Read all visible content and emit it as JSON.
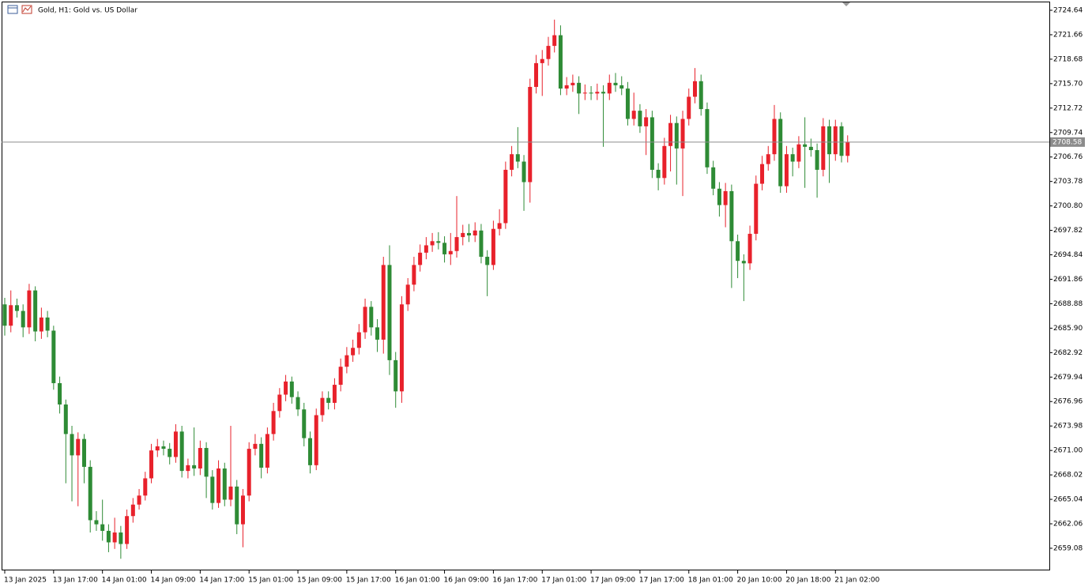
{
  "chart_data": {
    "type": "candlestick",
    "title": "Gold, H1:  Gold vs. US Dollar",
    "up_color": "#e8212b",
    "down_color": "#2e8b35",
    "last_price": 2708.58,
    "ylim": [
      2656.38,
      2725.7
    ],
    "yticks": [
      2659.08,
      2662.06,
      2665.04,
      {
        "value": 2668.02,
        "label": "2668.02"
      },
      {
        "value": 2671.0,
        "label": "2671.00"
      },
      2673.98,
      2676.96,
      2679.94,
      2682.92,
      {
        "value": 2685.9,
        "label": "2685.90"
      },
      2688.88,
      2691.86,
      2694.84,
      2697.82,
      {
        "value": 2700.8,
        "label": "2700.80"
      },
      2703.78,
      2706.76,
      2709.74,
      2712.72,
      {
        "value": 2715.7,
        "label": "2715.70"
      },
      2718.68,
      2721.66,
      2724.64
    ],
    "categories": [
      "13 Jan 2025",
      null,
      null,
      null,
      null,
      null,
      null,
      null,
      "13 Jan 17:00",
      null,
      null,
      null,
      null,
      null,
      null,
      null,
      "14 Jan 01:00",
      null,
      null,
      null,
      null,
      null,
      null,
      null,
      "14 Jan 09:00",
      null,
      null,
      null,
      null,
      null,
      null,
      null,
      "14 Jan 17:00",
      null,
      null,
      null,
      null,
      null,
      null,
      null,
      "15 Jan 01:00",
      null,
      null,
      null,
      null,
      null,
      null,
      null,
      "15 Jan 09:00",
      null,
      null,
      null,
      null,
      null,
      null,
      null,
      "15 Jan 17:00",
      null,
      null,
      null,
      null,
      null,
      null,
      null,
      "16 Jan 01:00",
      null,
      null,
      null,
      null,
      null,
      null,
      null,
      "16 Jan 09:00",
      null,
      null,
      null,
      null,
      null,
      null,
      null,
      "16 Jan 17:00",
      null,
      null,
      null,
      null,
      null,
      null,
      null,
      "17 Jan 01:00",
      null,
      null,
      null,
      null,
      null,
      null,
      null,
      "17 Jan 09:00",
      null,
      null,
      null,
      null,
      null,
      null,
      null,
      "17 Jan 17:00",
      null,
      null,
      null,
      null,
      null,
      null,
      null,
      "18 Jan 01:00",
      null,
      null,
      null,
      null,
      null,
      null,
      null,
      "20 Jan 10:00",
      null,
      null,
      null,
      null,
      null,
      null,
      null,
      "20 Jan 18:00",
      null,
      null,
      null,
      null,
      null,
      null,
      null,
      "21 Jan 02:00",
      null,
      null
    ],
    "open": [
      2688.8,
      2686.2,
      2688.7,
      2688.0,
      2686.0,
      2690.5,
      2685.5,
      2687.2,
      2685.6,
      2679.2,
      2676.6,
      2673.0,
      2670.4,
      2672.4,
      2669.0,
      2662.5,
      2662.0,
      2661.2,
      2659.8,
      2661.0,
      2659.6,
      2663.0,
      2664.4,
      2665.5,
      2667.6,
      2671.0,
      2671.5,
      2671.2,
      2670.2,
      2673.3,
      2668.5,
      2669.2,
      2668.8,
      2671.3,
      2667.8,
      2664.6,
      2668.8,
      2665.0,
      2666.6,
      2662.0,
      2665.5,
      2671.2,
      2671.8,
      2668.9,
      2673.0,
      2675.8,
      2677.8,
      2679.4,
      2677.5,
      2676.0,
      2672.5,
      2669.2,
      2675.3,
      2677.4,
      2676.8,
      2679.0,
      2681.2,
      2682.6,
      2683.5,
      2685.4,
      2688.5,
      2686.0,
      2684.5,
      2693.6,
      2682.0,
      2678.2,
      2688.8,
      2691.2,
      2693.6,
      2695.1,
      2696.0,
      2696.5,
      2696.3,
      2694.9,
      2695.3,
      2697.0,
      2697.5,
      2697.2,
      2697.8,
      2694.6,
      2693.6,
      2698.0,
      2698.7,
      2705.2,
      2707.1,
      2706.2,
      2703.7,
      2715.3,
      2718.2,
      2718.7,
      2720.3,
      2721.6,
      2715.1,
      2715.5,
      2715.8,
      2714.5,
      2714.6,
      2714.5,
      2714.7,
      2714.5,
      2715.8,
      2715.5,
      2715.1,
      2711.4,
      2712.4,
      2710.5,
      2711.6,
      2705.2,
      2704.2,
      2708.1,
      2710.9,
      2707.8,
      2711.4,
      2714.1,
      2716.0,
      2712.6,
      2705.5,
      2702.9,
      2700.9,
      2702.6,
      2696.5,
      2694.1,
      2693.8,
      2697.4,
      2703.5,
      2705.9,
      2707.1,
      2711.4,
      2703.2,
      2707.1,
      2706.2,
      2708.3,
      2708.0,
      2707.6,
      2705.2,
      2710.5,
      2707.1,
      2710.5,
      2706.9
    ],
    "high": [
      2689.6,
      2690.5,
      2689.5,
      2688.8,
      2691.3,
      2691.0,
      2688.4,
      2688.0,
      2686.2,
      2680.0,
      2677.2,
      2674.0,
      2673.2,
      2673.0,
      2669.8,
      2663.6,
      2665.0,
      2662.0,
      2662.8,
      2661.8,
      2663.8,
      2665.2,
      2666.3,
      2668.4,
      2671.8,
      2672.4,
      2672.2,
      2671.9,
      2674.2,
      2674.0,
      2670.0,
      2673.8,
      2672.2,
      2672.0,
      2668.6,
      2669.8,
      2669.5,
      2674.0,
      2667.4,
      2666.3,
      2672.0,
      2673.0,
      2672.6,
      2673.8,
      2676.8,
      2678.6,
      2680.2,
      2680.0,
      2678.2,
      2676.8,
      2673.3,
      2676.1,
      2678.2,
      2678.2,
      2679.8,
      2682.2,
      2683.6,
      2684.5,
      2686.4,
      2689.5,
      2689.2,
      2687.0,
      2694.6,
      2696.0,
      2683.0,
      2689.8,
      2692.0,
      2694.6,
      2696.1,
      2697.0,
      2697.5,
      2697.6,
      2697.1,
      2697.5,
      2702.0,
      2698.5,
      2698.6,
      2698.8,
      2698.6,
      2695.4,
      2699.0,
      2700.4,
      2706.2,
      2708.1,
      2710.4,
      2707.0,
      2716.3,
      2719.2,
      2719.8,
      2721.4,
      2723.5,
      2722.8,
      2716.5,
      2716.8,
      2716.6,
      2715.6,
      2715.4,
      2715.7,
      2715.5,
      2716.8,
      2717.0,
      2716.6,
      2715.9,
      2714.6,
      2713.2,
      2712.6,
      2712.4,
      2706.0,
      2709.1,
      2711.9,
      2711.7,
      2712.4,
      2715.1,
      2717.6,
      2716.8,
      2713.4,
      2706.3,
      2703.7,
      2703.6,
      2703.4,
      2697.3,
      2694.9,
      2698.4,
      2704.5,
      2706.9,
      2708.1,
      2713.1,
      2712.2,
      2708.1,
      2707.9,
      2709.3,
      2711.6,
      2709.0,
      2708.4,
      2711.5,
      2711.3,
      2711.3,
      2711.0,
      2709.4
    ],
    "low": [
      2685.0,
      2685.4,
      2687.2,
      2684.8,
      2685.2,
      2684.3,
      2684.6,
      2684.8,
      2678.4,
      2675.5,
      2667.0,
      2664.8,
      2664.2,
      2667.0,
      2661.0,
      2661.2,
      2660.0,
      2658.6,
      2659.0,
      2657.8,
      2659.0,
      2662.2,
      2663.8,
      2664.9,
      2667.0,
      2670.2,
      2670.4,
      2669.3,
      2669.5,
      2667.7,
      2667.6,
      2667.9,
      2668.0,
      2665.2,
      2663.8,
      2664.0,
      2664.2,
      2664.2,
      2660.8,
      2659.2,
      2664.8,
      2670.4,
      2667.6,
      2668.2,
      2672.2,
      2675.0,
      2677.0,
      2676.7,
      2675.2,
      2671.5,
      2668.2,
      2668.6,
      2674.5,
      2676.0,
      2676.0,
      2678.2,
      2680.4,
      2681.8,
      2682.7,
      2684.6,
      2685.0,
      2683.0,
      2682.8,
      2680.2,
      2676.2,
      2676.8,
      2688.0,
      2690.4,
      2692.8,
      2694.3,
      2695.2,
      2695.5,
      2693.9,
      2693.6,
      2694.5,
      2696.0,
      2696.4,
      2696.4,
      2693.8,
      2689.8,
      2693.0,
      2697.2,
      2698.0,
      2704.4,
      2705.4,
      2700.2,
      2701.2,
      2714.5,
      2714.2,
      2717.9,
      2719.5,
      2714.3,
      2714.3,
      2714.7,
      2712.0,
      2713.7,
      2713.7,
      2713.7,
      2708.0,
      2713.7,
      2714.7,
      2714.3,
      2710.6,
      2710.6,
      2709.7,
      2707.0,
      2704.2,
      2702.7,
      2703.4,
      2705.0,
      2703.4,
      2702.0,
      2710.6,
      2713.3,
      2711.8,
      2704.7,
      2702.1,
      2699.5,
      2698.2,
      2690.8,
      2692.0,
      2689.2,
      2693.0,
      2696.6,
      2702.7,
      2705.1,
      2706.3,
      2702.4,
      2702.4,
      2704.4,
      2705.4,
      2703.0,
      2706.8,
      2701.8,
      2704.4,
      2703.6,
      2706.3,
      2706.1,
      2706.1
    ],
    "close": [
      2686.2,
      2688.7,
      2688.0,
      2686.0,
      2690.5,
      2685.5,
      2687.2,
      2685.6,
      2679.2,
      2676.6,
      2673.0,
      2670.4,
      2672.4,
      2669.0,
      2662.5,
      2662.0,
      2661.2,
      2659.8,
      2661.0,
      2659.6,
      2663.0,
      2664.4,
      2665.5,
      2667.6,
      2671.0,
      2671.5,
      2671.2,
      2670.2,
      2673.3,
      2668.5,
      2669.2,
      2668.8,
      2671.3,
      2667.8,
      2664.6,
      2668.8,
      2665.0,
      2666.6,
      2662.0,
      2665.5,
      2671.2,
      2671.8,
      2668.9,
      2673.0,
      2675.8,
      2677.8,
      2679.4,
      2677.5,
      2676.0,
      2672.5,
      2669.2,
      2675.3,
      2677.4,
      2676.8,
      2679.0,
      2681.2,
      2682.6,
      2683.5,
      2685.4,
      2688.5,
      2686.0,
      2684.5,
      2693.6,
      2682.0,
      2678.2,
      2688.8,
      2691.2,
      2693.6,
      2695.1,
      2696.0,
      2696.5,
      2696.3,
      2694.9,
      2695.3,
      2697.0,
      2697.5,
      2697.2,
      2697.8,
      2694.6,
      2693.6,
      2698.0,
      2698.7,
      2705.2,
      2707.1,
      2706.2,
      2703.7,
      2715.3,
      2718.2,
      2718.7,
      2720.3,
      2721.6,
      2715.1,
      2715.5,
      2715.8,
      2714.5,
      2714.6,
      2714.5,
      2714.7,
      2714.5,
      2715.8,
      2715.5,
      2715.1,
      2711.4,
      2712.4,
      2710.5,
      2711.6,
      2705.2,
      2704.2,
      2708.1,
      2710.9,
      2707.8,
      2711.4,
      2714.1,
      2716.0,
      2712.6,
      2705.5,
      2702.9,
      2700.9,
      2702.6,
      2696.5,
      2694.1,
      2693.8,
      2697.4,
      2703.5,
      2705.9,
      2707.1,
      2711.4,
      2703.2,
      2707.1,
      2706.2,
      2708.3,
      2708.0,
      2707.6,
      2705.2,
      2710.5,
      2707.1,
      2710.5,
      2706.9,
      2708.58
    ]
  }
}
